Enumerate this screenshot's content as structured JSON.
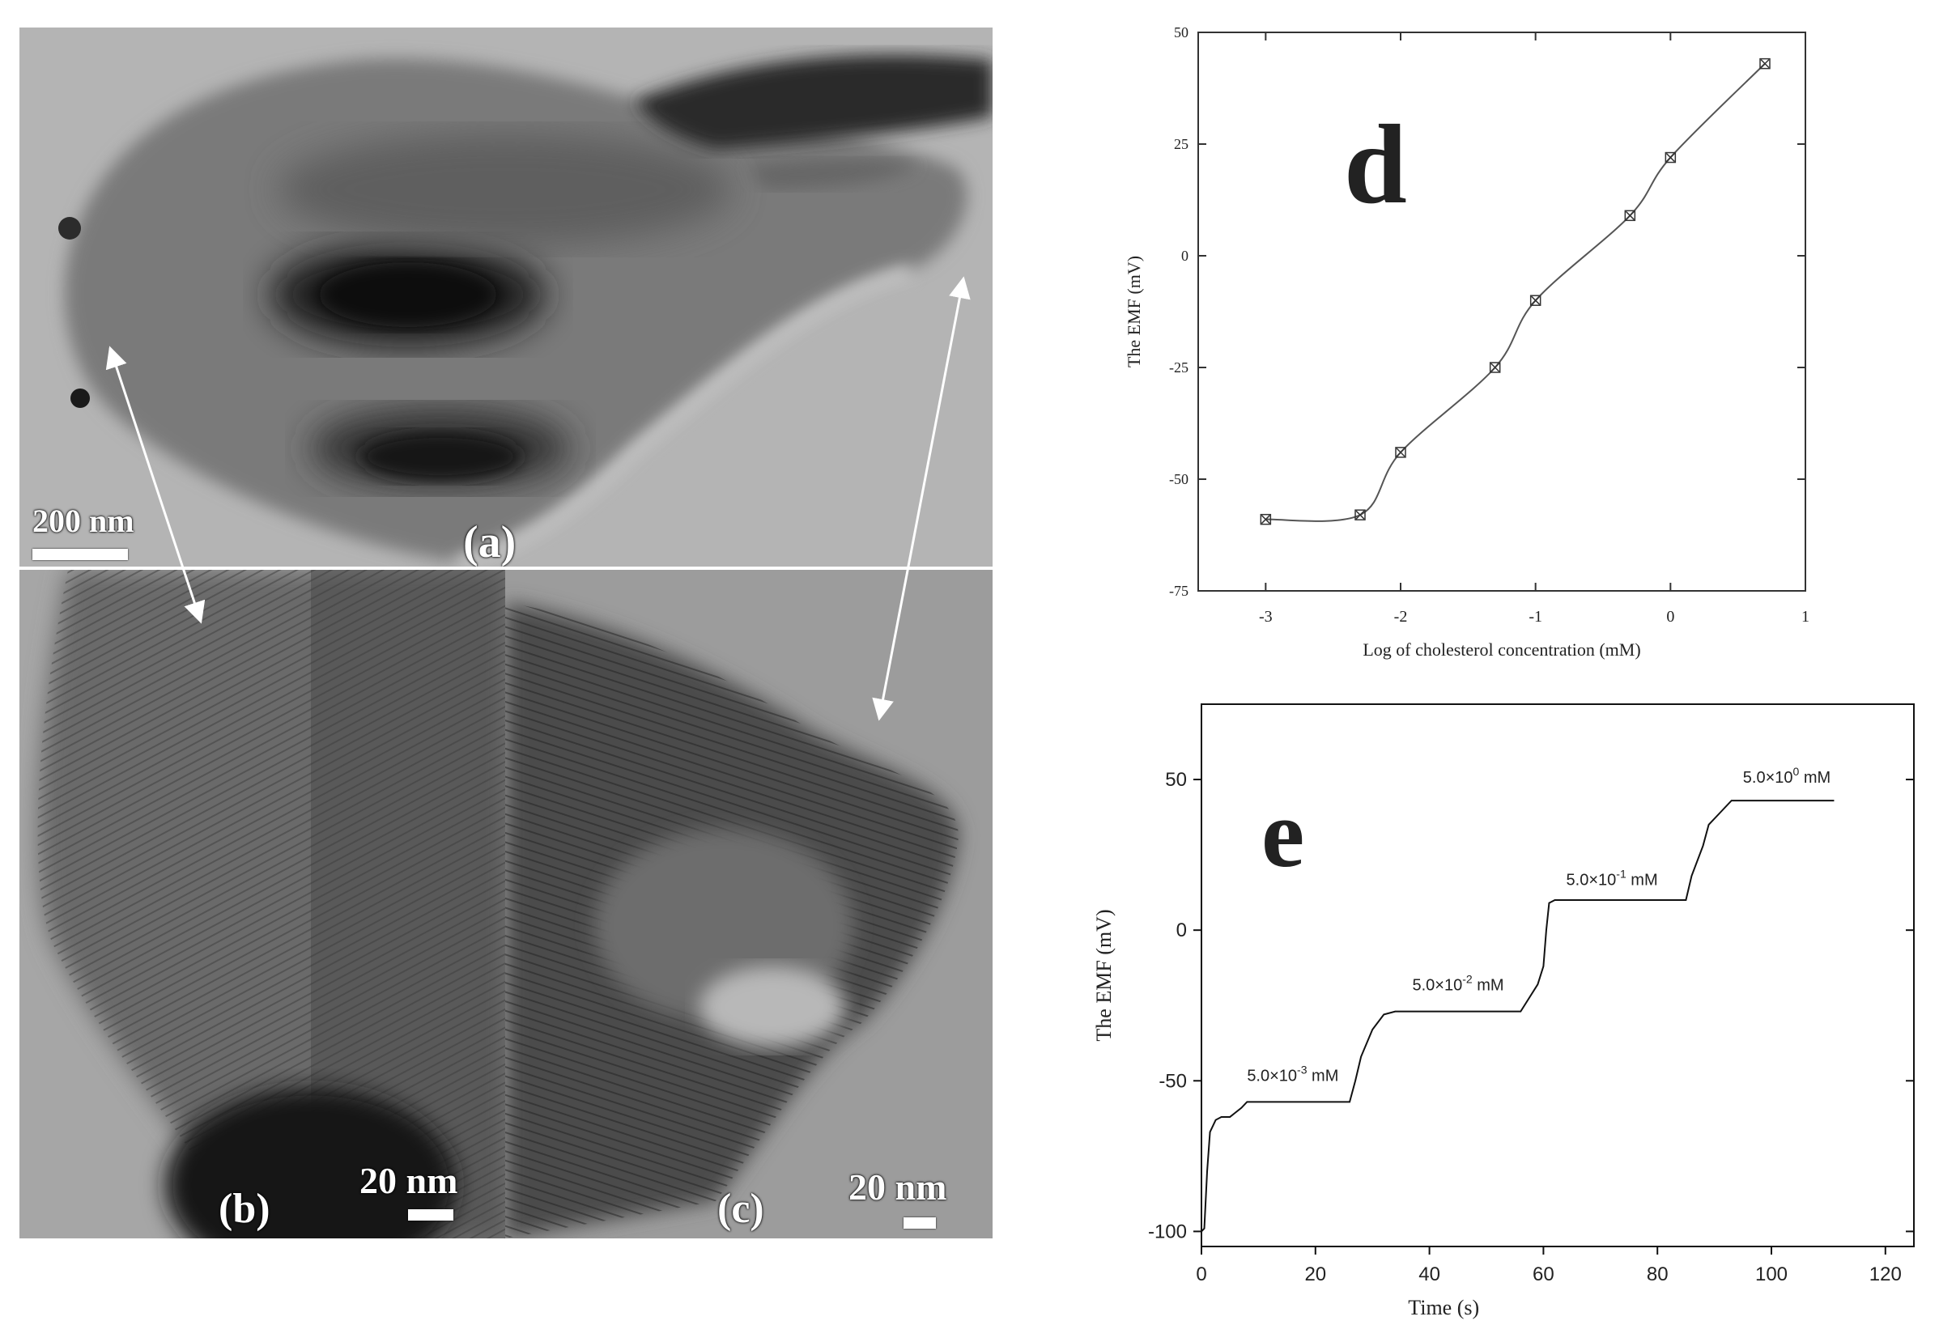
{
  "panels": {
    "a": {
      "label": "(a)",
      "scale": "200 nm"
    },
    "b": {
      "label": "(b)",
      "scale": "20 nm"
    },
    "c": {
      "label": "(c)",
      "scale": "20 nm"
    }
  },
  "chart_data": [
    {
      "panel_letter": "d",
      "type": "line",
      "xlabel": "Log of cholesterol concentration (mM)",
      "ylabel": "The EMF (mV)",
      "xlim": [
        -3.5,
        1
      ],
      "ylim": [
        -75,
        50
      ],
      "xticks": [
        -3,
        -2,
        -1,
        0,
        1
      ],
      "yticks": [
        -75,
        -50,
        -25,
        0,
        25,
        50
      ],
      "grid": false,
      "series": [
        {
          "x": [
            -3,
            -2.3,
            -2,
            -1.3,
            -1,
            -0.3,
            0,
            0.7
          ],
          "y": [
            -59,
            -58,
            -44,
            -25,
            -10,
            9,
            22,
            43
          ]
        }
      ]
    },
    {
      "panel_letter": "e",
      "type": "line",
      "xlabel": "Time (s)",
      "ylabel": "The EMF (mV)",
      "xlim": [
        0,
        125
      ],
      "ylim": [
        -105,
        75
      ],
      "xticks": [
        0,
        20,
        40,
        60,
        80,
        100,
        120
      ],
      "yticks": [
        -100,
        -50,
        0,
        50
      ],
      "grid": false,
      "series": [
        {
          "x": [
            0,
            0.5,
            1,
            1.5,
            2.5,
            3.5,
            5,
            7,
            8,
            26,
            27,
            28,
            30,
            32,
            34,
            56,
            57,
            59,
            60,
            60.5,
            61,
            62,
            85,
            86,
            88,
            89,
            91,
            93,
            111
          ],
          "y": [
            -100,
            -99,
            -80,
            -67,
            -63,
            -62,
            -62,
            -59,
            -57,
            -57,
            -50,
            -42,
            -33,
            -28,
            -27,
            -27,
            -24,
            -18,
            -12,
            0,
            9,
            10,
            10,
            18,
            28,
            35,
            39,
            43,
            43
          ]
        }
      ],
      "annotations": [
        {
          "base": "5.0×10",
          "exp": "-3",
          "unit": " mM",
          "x": 8,
          "y": -50
        },
        {
          "base": "5.0×10",
          "exp": "-2",
          "unit": " mM",
          "x": 37,
          "y": -20
        },
        {
          "base": "5.0×10",
          "exp": "-1",
          "unit": " mM",
          "x": 64,
          "y": 15
        },
        {
          "base": "5.0×10",
          "exp": "0",
          "unit": " mM",
          "x": 95,
          "y": 49
        }
      ]
    }
  ]
}
